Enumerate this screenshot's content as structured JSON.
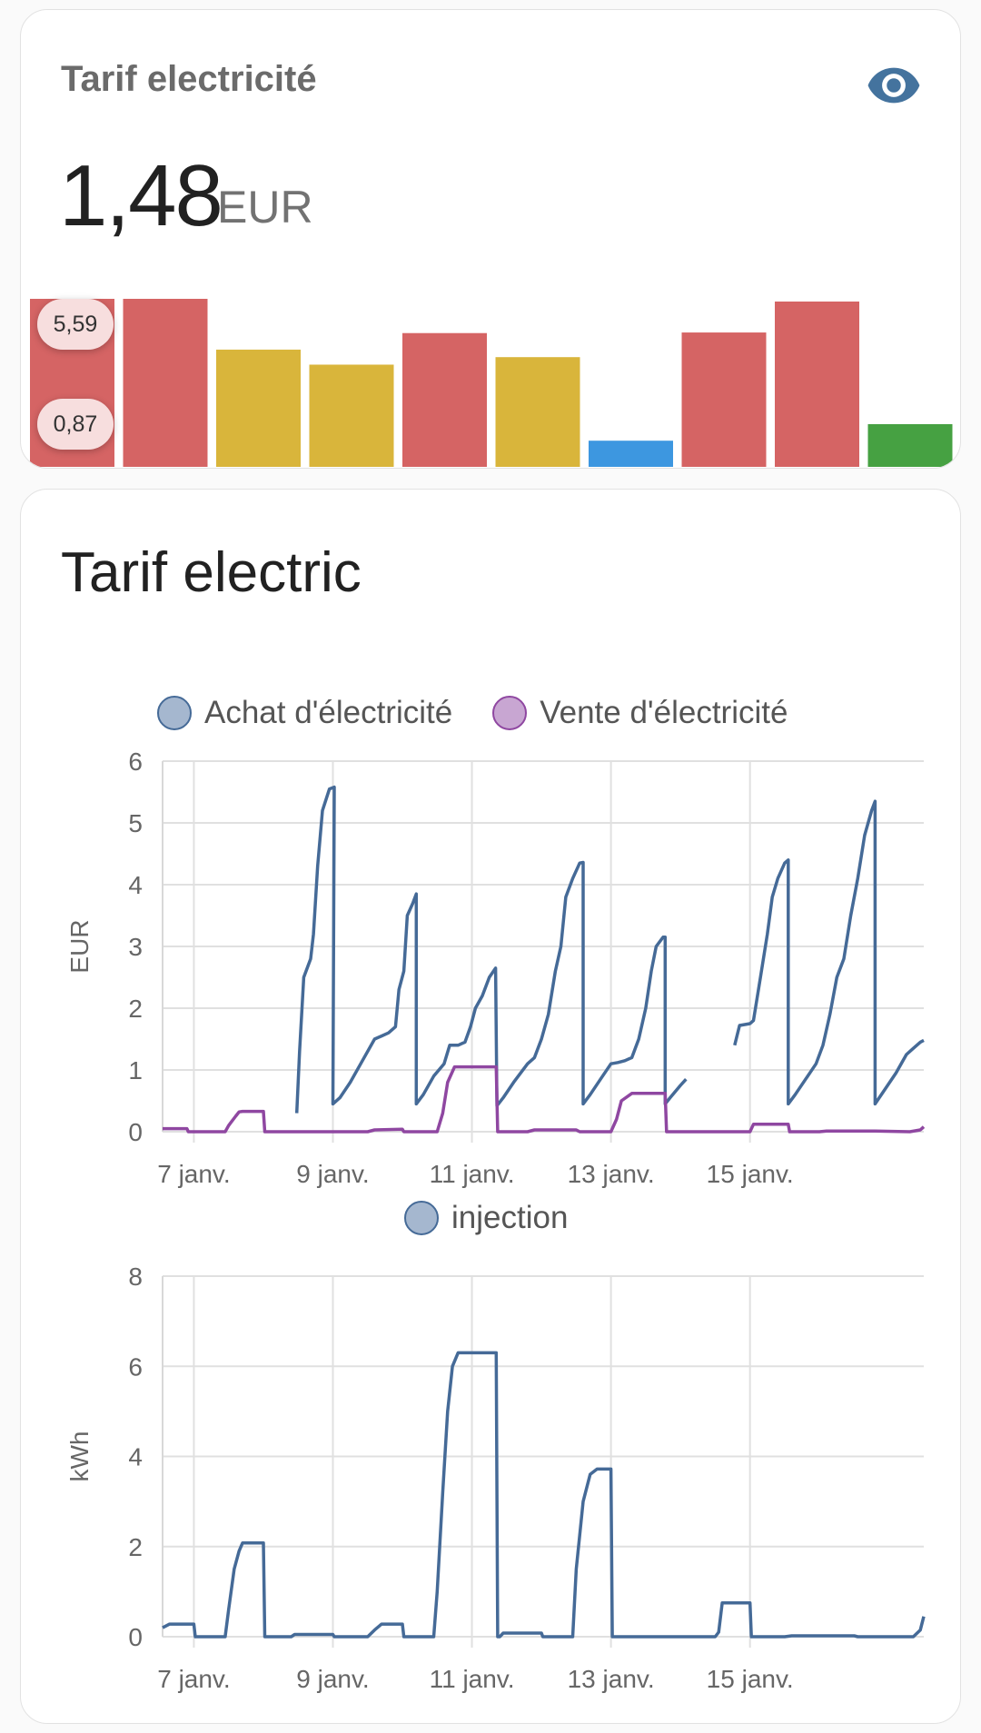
{
  "sensor_card": {
    "title": "Tarif electricité",
    "value": "1,48",
    "unit": "EUR",
    "icon": "eye-icon",
    "max_label": "5,59",
    "min_label": "0,87",
    "bars": [
      {
        "value": 5.59,
        "color": "#d56464"
      },
      {
        "value": 5.59,
        "color": "#d56464"
      },
      {
        "value": 3.9,
        "color": "#d9b53b"
      },
      {
        "value": 3.4,
        "color": "#d9b53b"
      },
      {
        "value": 4.45,
        "color": "#d56464"
      },
      {
        "value": 3.65,
        "color": "#d9b53b"
      },
      {
        "value": 0.87,
        "color": "#3d97e0"
      },
      {
        "value": 4.47,
        "color": "#d56464"
      },
      {
        "value": 5.5,
        "color": "#d56464"
      },
      {
        "value": 1.42,
        "color": "#46a142"
      }
    ]
  },
  "history_card": {
    "title": "Tarif electric"
  },
  "chart_data": [
    {
      "type": "line",
      "series": [
        {
          "name": "Achat d'électricité",
          "color": "#456a97",
          "segments": [
            [
              [
                8.48,
                0.3
              ],
              [
                8.52,
                1.3
              ],
              [
                8.58,
                2.5
              ],
              [
                8.68,
                2.8
              ],
              [
                8.72,
                3.2
              ],
              [
                8.78,
                4.3
              ],
              [
                8.85,
                5.2
              ],
              [
                8.95,
                5.55
              ],
              [
                9.02,
                5.58
              ],
              [
                9.0,
                0.45
              ],
              [
                9.1,
                0.55
              ],
              [
                9.25,
                0.8
              ],
              [
                9.4,
                1.1
              ],
              [
                9.6,
                1.5
              ],
              [
                9.7,
                1.55
              ],
              [
                9.8,
                1.6
              ],
              [
                9.9,
                1.7
              ],
              [
                9.95,
                2.3
              ],
              [
                10.02,
                2.6
              ],
              [
                10.07,
                3.5
              ],
              [
                10.15,
                3.7
              ],
              [
                10.2,
                3.85
              ],
              [
                10.2,
                0.45
              ],
              [
                10.3,
                0.6
              ],
              [
                10.45,
                0.9
              ],
              [
                10.6,
                1.1
              ],
              [
                10.68,
                1.4
              ],
              [
                10.8,
                1.4
              ],
              [
                10.9,
                1.45
              ],
              [
                10.98,
                1.7
              ],
              [
                11.05,
                2.0
              ],
              [
                11.15,
                2.2
              ],
              [
                11.25,
                2.5
              ],
              [
                11.34,
                2.65
              ],
              [
                11.36,
                0.42
              ],
              [
                11.45,
                0.55
              ],
              [
                11.6,
                0.8
              ],
              [
                11.7,
                0.95
              ],
              [
                11.8,
                1.1
              ],
              [
                11.9,
                1.2
              ],
              [
                12.0,
                1.5
              ],
              [
                12.1,
                1.9
              ],
              [
                12.2,
                2.6
              ],
              [
                12.28,
                3.0
              ],
              [
                12.35,
                3.8
              ],
              [
                12.45,
                4.1
              ],
              [
                12.55,
                4.35
              ],
              [
                12.6,
                4.36
              ],
              [
                12.6,
                0.45
              ],
              [
                12.7,
                0.6
              ],
              [
                12.85,
                0.85
              ],
              [
                13.0,
                1.1
              ],
              [
                13.1,
                1.12
              ],
              [
                13.2,
                1.15
              ],
              [
                13.3,
                1.2
              ],
              [
                13.4,
                1.5
              ],
              [
                13.5,
                2.0
              ],
              [
                13.58,
                2.6
              ],
              [
                13.65,
                3.0
              ],
              [
                13.75,
                3.15
              ],
              [
                13.78,
                3.15
              ],
              [
                13.78,
                0.45
              ],
              [
                13.85,
                0.55
              ],
              [
                14.0,
                0.75
              ],
              [
                14.08,
                0.85
              ]
            ],
            [
              [
                14.78,
                1.4
              ],
              [
                14.85,
                1.72
              ],
              [
                15.0,
                1.75
              ],
              [
                15.05,
                1.8
              ],
              [
                15.15,
                2.5
              ],
              [
                15.25,
                3.2
              ],
              [
                15.32,
                3.8
              ],
              [
                15.4,
                4.1
              ],
              [
                15.5,
                4.35
              ],
              [
                15.55,
                4.4
              ],
              [
                15.55,
                0.45
              ],
              [
                15.65,
                0.6
              ],
              [
                15.8,
                0.85
              ],
              [
                15.95,
                1.1
              ],
              [
                16.05,
                1.4
              ],
              [
                16.15,
                1.9
              ],
              [
                16.25,
                2.5
              ],
              [
                16.35,
                2.8
              ],
              [
                16.45,
                3.5
              ],
              [
                16.55,
                4.1
              ],
              [
                16.65,
                4.8
              ],
              [
                16.75,
                5.2
              ],
              [
                16.8,
                5.35
              ],
              [
                16.8,
                0.45
              ],
              [
                16.95,
                0.7
              ],
              [
                17.1,
                0.95
              ],
              [
                17.25,
                1.25
              ],
              [
                17.35,
                1.35
              ],
              [
                17.45,
                1.45
              ],
              [
                17.5,
                1.48
              ]
            ]
          ]
        },
        {
          "name": "Vente d'électricité",
          "color": "#8f47a1",
          "segments": [
            [
              [
                6.55,
                0.05
              ],
              [
                6.9,
                0.05
              ],
              [
                6.92,
                0.0
              ],
              [
                7.45,
                0.0
              ],
              [
                7.5,
                0.1
              ],
              [
                7.6,
                0.25
              ],
              [
                7.65,
                0.32
              ],
              [
                7.7,
                0.33
              ],
              [
                8.0,
                0.33
              ],
              [
                8.02,
                0.0
              ],
              [
                9.0,
                0.0
              ],
              [
                9.5,
                0.0
              ],
              [
                9.6,
                0.03
              ],
              [
                10.0,
                0.04
              ],
              [
                10.02,
                0.0
              ],
              [
                10.5,
                0.0
              ],
              [
                10.58,
                0.3
              ],
              [
                10.65,
                0.8
              ],
              [
                10.75,
                1.05
              ],
              [
                11.35,
                1.05
              ],
              [
                11.37,
                0.0
              ],
              [
                11.8,
                0.0
              ],
              [
                11.9,
                0.03
              ],
              [
                12.5,
                0.03
              ],
              [
                12.55,
                0.0
              ],
              [
                13.0,
                0.0
              ],
              [
                13.08,
                0.2
              ],
              [
                13.15,
                0.5
              ],
              [
                13.3,
                0.62
              ],
              [
                13.78,
                0.62
              ],
              [
                13.8,
                0.0
              ],
              [
                15.0,
                0.0
              ],
              [
                15.05,
                0.12
              ],
              [
                15.55,
                0.12
              ],
              [
                15.57,
                0.0
              ],
              [
                16.0,
                0.0
              ],
              [
                16.1,
                0.01
              ],
              [
                16.8,
                0.01
              ],
              [
                17.3,
                0.0
              ],
              [
                17.45,
                0.03
              ],
              [
                17.5,
                0.08
              ]
            ]
          ]
        }
      ],
      "ylabel": "EUR",
      "ylim": [
        0,
        6
      ],
      "yticks": [
        "0",
        "1",
        "2",
        "3",
        "4",
        "5",
        "6"
      ],
      "xlim": [
        6.55,
        17.5
      ],
      "xticks": [
        {
          "x": 7,
          "label": "7 janv."
        },
        {
          "x": 9,
          "label": "9 janv."
        },
        {
          "x": 11,
          "label": "11 janv."
        },
        {
          "x": 13,
          "label": "13 janv."
        },
        {
          "x": 15,
          "label": "15 janv."
        }
      ],
      "grid": true,
      "legend": "top"
    },
    {
      "type": "line",
      "series": [
        {
          "name": "injection",
          "color": "#456a97",
          "segments": [
            [
              [
                6.55,
                0.2
              ],
              [
                6.65,
                0.28
              ],
              [
                7.0,
                0.28
              ],
              [
                7.02,
                0.0
              ],
              [
                7.45,
                0.0
              ],
              [
                7.5,
                0.6
              ],
              [
                7.58,
                1.5
              ],
              [
                7.65,
                1.9
              ],
              [
                7.7,
                2.08
              ],
              [
                8.0,
                2.08
              ],
              [
                8.02,
                0.0
              ],
              [
                8.4,
                0.0
              ],
              [
                8.45,
                0.05
              ],
              [
                9.0,
                0.05
              ],
              [
                9.02,
                0.0
              ],
              [
                9.5,
                0.0
              ],
              [
                9.6,
                0.15
              ],
              [
                9.7,
                0.28
              ],
              [
                10.0,
                0.28
              ],
              [
                10.02,
                0.0
              ],
              [
                10.45,
                0.0
              ],
              [
                10.5,
                1.0
              ],
              [
                10.58,
                3.2
              ],
              [
                10.65,
                5.0
              ],
              [
                10.72,
                6.0
              ],
              [
                10.8,
                6.3
              ],
              [
                11.35,
                6.3
              ],
              [
                11.37,
                0.0
              ],
              [
                11.4,
                0.0
              ],
              [
                11.45,
                0.08
              ],
              [
                12.0,
                0.08
              ],
              [
                12.02,
                0.0
              ],
              [
                12.45,
                0.0
              ],
              [
                12.5,
                1.5
              ],
              [
                12.6,
                3.0
              ],
              [
                12.7,
                3.6
              ],
              [
                12.8,
                3.72
              ],
              [
                13.0,
                3.72
              ],
              [
                13.02,
                0.0
              ],
              [
                14.5,
                0.0
              ],
              [
                14.55,
                0.1
              ],
              [
                14.6,
                0.75
              ],
              [
                15.0,
                0.75
              ],
              [
                15.02,
                0.0
              ],
              [
                15.5,
                0.0
              ],
              [
                15.6,
                0.02
              ],
              [
                16.5,
                0.02
              ],
              [
                16.55,
                0.0
              ],
              [
                17.0,
                0.0
              ],
              [
                17.35,
                0.0
              ],
              [
                17.45,
                0.15
              ],
              [
                17.5,
                0.45
              ]
            ]
          ]
        }
      ],
      "ylabel": "kWh",
      "ylim": [
        0,
        8
      ],
      "yticks": [
        "0",
        "2",
        "4",
        "6",
        "8"
      ],
      "xlim": [
        6.55,
        17.5
      ],
      "xticks": [
        {
          "x": 7,
          "label": "7 janv."
        },
        {
          "x": 9,
          "label": "9 janv."
        },
        {
          "x": 11,
          "label": "11 janv."
        },
        {
          "x": 13,
          "label": "13 janv."
        },
        {
          "x": 15,
          "label": "15 janv."
        }
      ],
      "grid": true,
      "legend": "top"
    }
  ]
}
